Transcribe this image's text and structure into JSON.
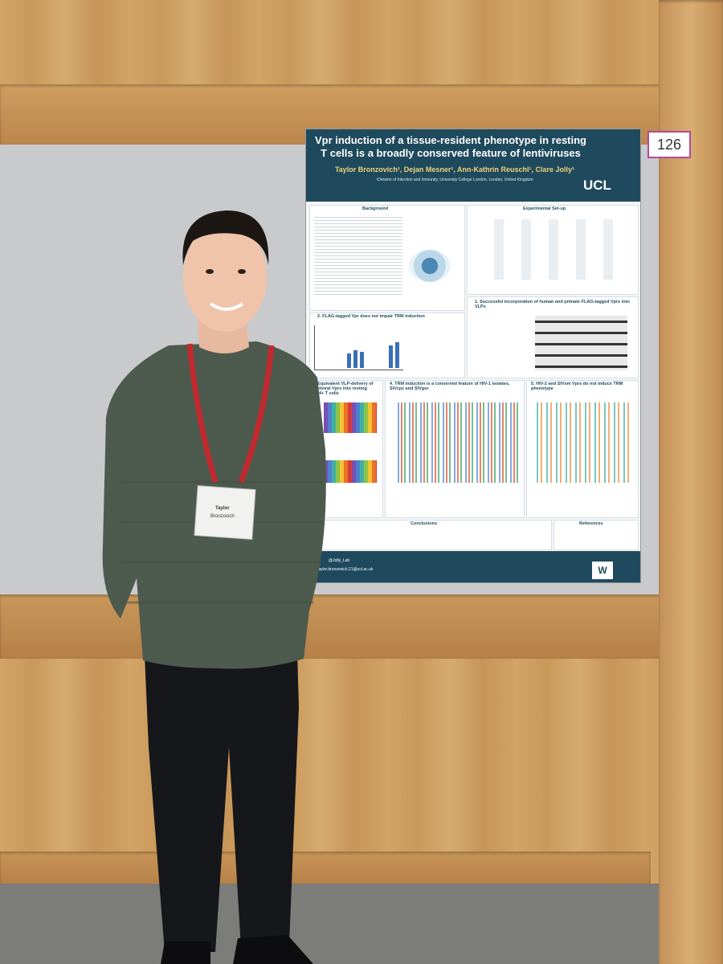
{
  "poster": {
    "number": "126",
    "title": "Vpr induction of a tissue-resident phenotype in resting T cells is a broadly conserved feature of lentiviruses",
    "authors": "Taylor Bronzovich¹, Dejan Mesner¹, Ann-Kathrin Reuschl¹, Clare Jolly¹",
    "affiliation": "¹Division of Infection and Immunity, University College London, London, United Kingdom",
    "logo": "UCL",
    "sections": [
      "Background",
      "Experimental Set-up",
      "1. Successful incorporation of human and primate FLAG-tagged Vprs into VLPs",
      "2. FLAG-tagged Vpr does not impair TRM induction",
      "3. Equivalent VLP-delivery of lentiviral Vprs into resting CD4+ T cells",
      "4. TRM induction is a conserved feature of HIV-1 isolates, SIVcpz and SIVgor",
      "5. HIV-2 and SIVsm Vprs do not induce TRM phenotype",
      "Conclusions",
      "References"
    ],
    "twitter": "@Jolly_Lab",
    "email": "taylor.bronzovich.21@ucl.ac.uk",
    "sponsor": "W"
  },
  "badge": {
    "name_line1": "Taylor",
    "name_line2": "Bronzovich"
  }
}
